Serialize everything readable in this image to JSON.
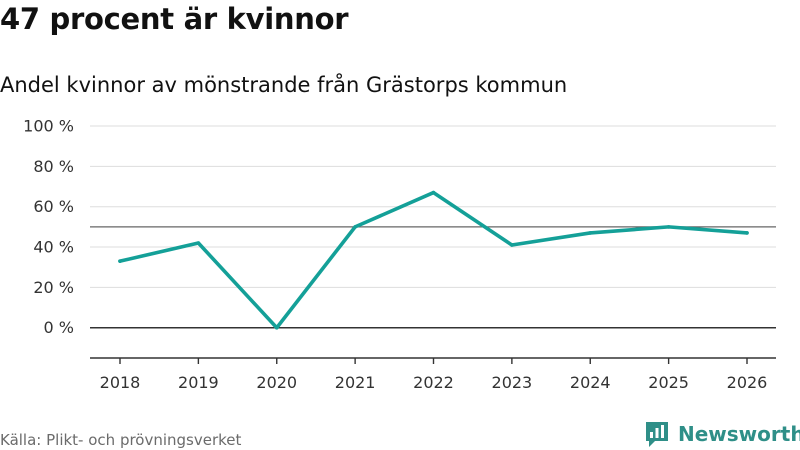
{
  "header": {
    "title": "47 procent är kvinnor",
    "subtitle": "Andel kvinnor av mönstrande från Grästorps kommun"
  },
  "chart_data": {
    "type": "line",
    "title": "47 procent är kvinnor",
    "subtitle": "Andel kvinnor av mönstrande från Grästorps kommun",
    "xlabel": "",
    "ylabel": "",
    "categories": [
      "2018",
      "2019",
      "2020",
      "2021",
      "2022",
      "2023",
      "2024",
      "2025",
      "2026"
    ],
    "series": [
      {
        "name": "Andel kvinnor",
        "values": [
          33,
          42,
          0,
          50,
          67,
          41,
          47,
          50,
          47
        ],
        "color": "#14a098"
      }
    ],
    "ylim": [
      -15,
      100
    ],
    "yticks": [
      0,
      20,
      40,
      60,
      80,
      100
    ],
    "ytick_labels": [
      "0 %",
      "20 %",
      "40 %",
      "60 %",
      "80 %",
      "100 %"
    ],
    "reference_line": 50,
    "grid": true
  },
  "footer": {
    "source": "Källa: Plikt- och prövningsverket",
    "brand": "Newsworthy"
  },
  "colors": {
    "line": "#14a098",
    "brand": "#2f8f88",
    "grid": "#dddddd",
    "reference": "#666666",
    "axis": "#333333"
  },
  "icons": {
    "brand": "newsworthy-logo-icon"
  }
}
